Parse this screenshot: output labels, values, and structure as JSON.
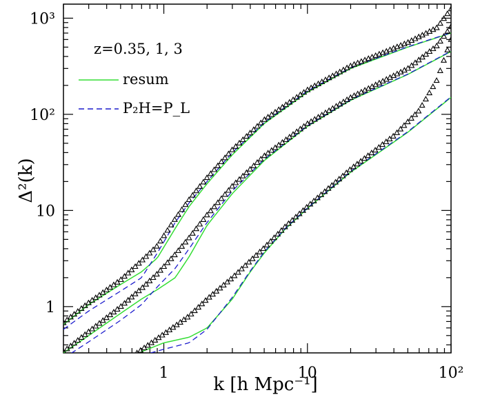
{
  "chart_data": {
    "type": "line",
    "xlabel": "k [h Mpc⁻¹]",
    "ylabel": "Δ²(k)",
    "x_scale": "log",
    "y_scale": "log",
    "xlim": [
      0.2,
      100
    ],
    "ylim": [
      0.33,
      1400
    ],
    "x_ticks": [
      {
        "value": 1,
        "label": "1"
      },
      {
        "value": 10,
        "label": "10"
      },
      {
        "value": 100,
        "label": "10²"
      }
    ],
    "y_ticks": [
      {
        "value": 1,
        "label": "1"
      },
      {
        "value": 10,
        "label": "10"
      },
      {
        "value": 100,
        "label": "10²"
      },
      {
        "value": 1000,
        "label": "10³"
      }
    ],
    "annotation": "z=0.35, 1, 3",
    "legend": [
      {
        "label": "resum",
        "style": "solid",
        "color": "#33dd33"
      },
      {
        "label": "P₂H=P_L",
        "style": "dashed",
        "color": "#1a1acc"
      }
    ],
    "groups": [
      {
        "z": 0.35,
        "resum": [
          [
            0.2,
            0.65
          ],
          [
            0.3,
            1.05
          ],
          [
            0.5,
            1.7
          ],
          [
            0.7,
            2.3
          ],
          [
            0.9,
            3.2
          ],
          [
            1.2,
            6.5
          ],
          [
            1.5,
            11
          ],
          [
            2,
            19
          ],
          [
            3,
            38
          ],
          [
            5,
            80
          ],
          [
            10,
            170
          ],
          [
            20,
            300
          ],
          [
            50,
            500
          ],
          [
            100,
            700
          ]
        ],
        "two_halo": [
          [
            0.2,
            0.58
          ],
          [
            0.3,
            0.9
          ],
          [
            0.5,
            1.45
          ],
          [
            0.7,
            2.0
          ],
          [
            0.9,
            3.6
          ],
          [
            1.2,
            7.5
          ],
          [
            1.5,
            12
          ],
          [
            2,
            20
          ],
          [
            3,
            40
          ],
          [
            5,
            82
          ],
          [
            10,
            175
          ],
          [
            20,
            305
          ],
          [
            50,
            505
          ],
          [
            100,
            705
          ]
        ],
        "simulation": [
          [
            0.2,
            0.68
          ],
          [
            0.3,
            1.1
          ],
          [
            0.5,
            1.9
          ],
          [
            0.7,
            3.0
          ],
          [
            0.9,
            4.3
          ],
          [
            1.2,
            8.2
          ],
          [
            1.5,
            13
          ],
          [
            2,
            22
          ],
          [
            3,
            43
          ],
          [
            5,
            88
          ],
          [
            10,
            180
          ],
          [
            20,
            320
          ],
          [
            50,
            560
          ],
          [
            80,
            800
          ],
          [
            100,
            1250
          ]
        ]
      },
      {
        "z": 1,
        "resum": [
          [
            0.2,
            0.33
          ],
          [
            0.3,
            0.5
          ],
          [
            0.5,
            0.85
          ],
          [
            0.7,
            1.2
          ],
          [
            0.9,
            1.5
          ],
          [
            1.2,
            2.0
          ],
          [
            1.5,
            3.3
          ],
          [
            2,
            7
          ],
          [
            3,
            15
          ],
          [
            5,
            33
          ],
          [
            10,
            75
          ],
          [
            20,
            140
          ],
          [
            50,
            260
          ],
          [
            100,
            450
          ]
        ],
        "two_halo": [
          [
            0.2,
            0.29
          ],
          [
            0.3,
            0.43
          ],
          [
            0.5,
            0.72
          ],
          [
            0.7,
            1.05
          ],
          [
            0.9,
            1.6
          ],
          [
            1.2,
            2.5
          ],
          [
            1.5,
            4.0
          ],
          [
            2,
            7.5
          ],
          [
            3,
            16
          ],
          [
            5,
            34
          ],
          [
            10,
            76
          ],
          [
            20,
            142
          ],
          [
            50,
            262
          ],
          [
            100,
            455
          ]
        ],
        "simulation": [
          [
            0.2,
            0.34
          ],
          [
            0.3,
            0.55
          ],
          [
            0.5,
            1.0
          ],
          [
            0.7,
            1.55
          ],
          [
            0.9,
            2.2
          ],
          [
            1.2,
            3.5
          ],
          [
            1.5,
            5.2
          ],
          [
            2,
            9.0
          ],
          [
            3,
            18
          ],
          [
            5,
            37
          ],
          [
            10,
            80
          ],
          [
            20,
            150
          ],
          [
            50,
            300
          ],
          [
            80,
            520
          ],
          [
            100,
            820
          ]
        ]
      },
      {
        "z": 3,
        "resum": [
          [
            0.7,
            0.34
          ],
          [
            1,
            0.42
          ],
          [
            1.5,
            0.48
          ],
          [
            2,
            0.6
          ],
          [
            3,
            1.2
          ],
          [
            4,
            2.3
          ],
          [
            5,
            3.6
          ],
          [
            7,
            6.4
          ],
          [
            10,
            10.5
          ],
          [
            20,
            25
          ],
          [
            50,
            65
          ],
          [
            100,
            150
          ]
        ],
        "two_halo": [
          [
            0.7,
            0.31
          ],
          [
            1,
            0.36
          ],
          [
            1.5,
            0.42
          ],
          [
            2,
            0.58
          ],
          [
            3,
            1.25
          ],
          [
            4,
            2.35
          ],
          [
            5,
            3.7
          ],
          [
            7,
            6.5
          ],
          [
            10,
            10.6
          ],
          [
            20,
            25.5
          ],
          [
            50,
            66
          ],
          [
            100,
            152
          ]
        ],
        "simulation": [
          [
            0.65,
            0.33
          ],
          [
            1,
            0.52
          ],
          [
            1.5,
            0.8
          ],
          [
            2,
            1.2
          ],
          [
            3,
            2.0
          ],
          [
            4,
            3.0
          ],
          [
            5,
            4.1
          ],
          [
            7,
            6.8
          ],
          [
            10,
            11
          ],
          [
            20,
            27
          ],
          [
            40,
            60
          ],
          [
            60,
            110
          ],
          [
            80,
            230
          ],
          [
            100,
            600
          ]
        ]
      }
    ]
  }
}
